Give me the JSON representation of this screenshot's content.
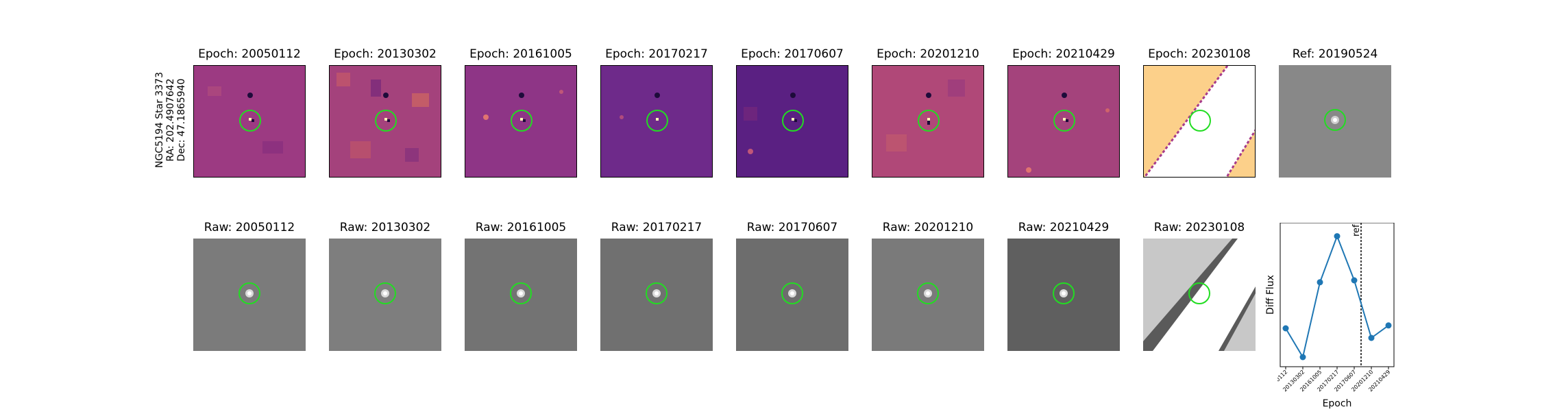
{
  "object": {
    "name_line": "NGC5194 Star 3373",
    "ra_line": "RA: 202.4907642",
    "dec_line": "Dec: 47.1865940"
  },
  "top_row_titles": [
    "Epoch: 20050112",
    "Epoch: 20130302",
    "Epoch: 20161005",
    "Epoch: 20170217",
    "Epoch: 20170607",
    "Epoch: 20201210",
    "Epoch: 20210429",
    "Epoch: 20230108",
    "Ref: 20190524"
  ],
  "bottom_row_titles": [
    "Raw: 20050112",
    "Raw: 20130302",
    "Raw: 20161005",
    "Raw: 20170217",
    "Raw: 20170607",
    "Raw: 20201210",
    "Raw: 20210429",
    "Raw: 20230108"
  ],
  "colors": {
    "circle": "#22dd22",
    "series": "#1f77b4",
    "diff_bg": "#a03a86",
    "raw_bg": "#777777"
  },
  "chart_data": {
    "type": "line",
    "categories": [
      "20050112",
      "20130302",
      "20161005",
      "20170217",
      "20170607",
      "20201210",
      "20210429"
    ],
    "values": [
      0.0,
      -0.3,
      0.48,
      0.96,
      0.5,
      -0.1,
      0.03
    ],
    "xlabel": "Epoch",
    "ylabel": "Diff Flux",
    "ylim": [
      -0.4,
      1.1
    ],
    "ref_marker": {
      "label": "ref",
      "position_between": [
        "20170607",
        "20201210"
      ],
      "x_value": 4.4
    }
  }
}
